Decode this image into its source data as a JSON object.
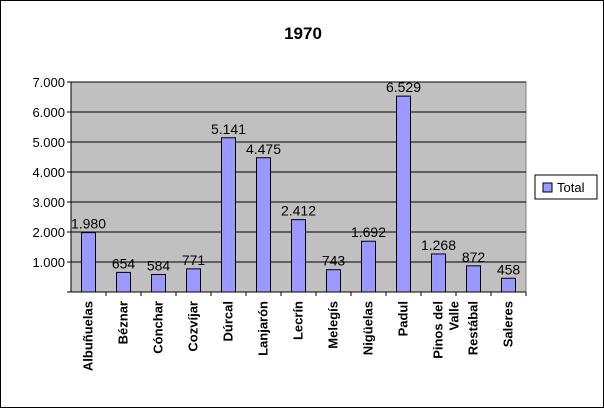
{
  "chart_data": {
    "type": "bar",
    "title": "1970",
    "categories": [
      "Albuñuelas",
      "Béznar",
      "Cónchar",
      "Cozvíjar",
      "Dúrcal",
      "Lanjarón",
      "Lecrín",
      "Melegís",
      "Nigüelas",
      "Padul",
      "Pinos del Valle",
      "Restábal",
      "Saleres"
    ],
    "series": [
      {
        "name": "Total",
        "values": [
          1980,
          654,
          584,
          771,
          5141,
          4475,
          2412,
          743,
          1692,
          6529,
          1268,
          872,
          458
        ],
        "labels": [
          "1.980",
          "654",
          "584",
          "771",
          "5.141",
          "4.475",
          "2.412",
          "743",
          "1.692",
          "6.529",
          "1.268",
          "872",
          "458"
        ]
      }
    ],
    "ylim": [
      0,
      7000
    ],
    "yticks": [
      0,
      1000,
      2000,
      3000,
      4000,
      5000,
      6000,
      7000
    ],
    "ytick_labels": [
      "",
      "1.000",
      "2.000",
      "3.000",
      "4.000",
      "5.000",
      "6.000",
      "7.000"
    ],
    "grid": true,
    "legend_position": "right",
    "colors": {
      "plot_background": "#C0C0C0",
      "bar_fill": "#9999FF",
      "bar_stroke": "#000000",
      "gridline": "#000000"
    }
  }
}
